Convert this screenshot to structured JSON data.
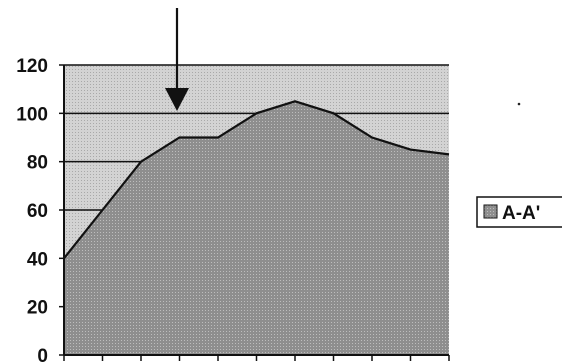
{
  "chart_data": {
    "type": "area",
    "categories": [
      "",
      "",
      "",
      "",
      "",
      "",
      "",
      "",
      "",
      "",
      ""
    ],
    "series": [
      {
        "name": "A-A'",
        "values": [
          40,
          60,
          80,
          90,
          90,
          100,
          105,
          100,
          90,
          85,
          83
        ]
      }
    ],
    "ylim": [
      0,
      120
    ],
    "yticks": [
      "0",
      "20",
      "40",
      "60",
      "80",
      "100",
      "120"
    ],
    "grid": true,
    "legend_position": "right",
    "annotation": "arrow-pointing-down",
    "colors": {
      "plot_bg": "#cfcfcf",
      "area_fill": "#8c8c8c",
      "line": "#111111"
    }
  }
}
